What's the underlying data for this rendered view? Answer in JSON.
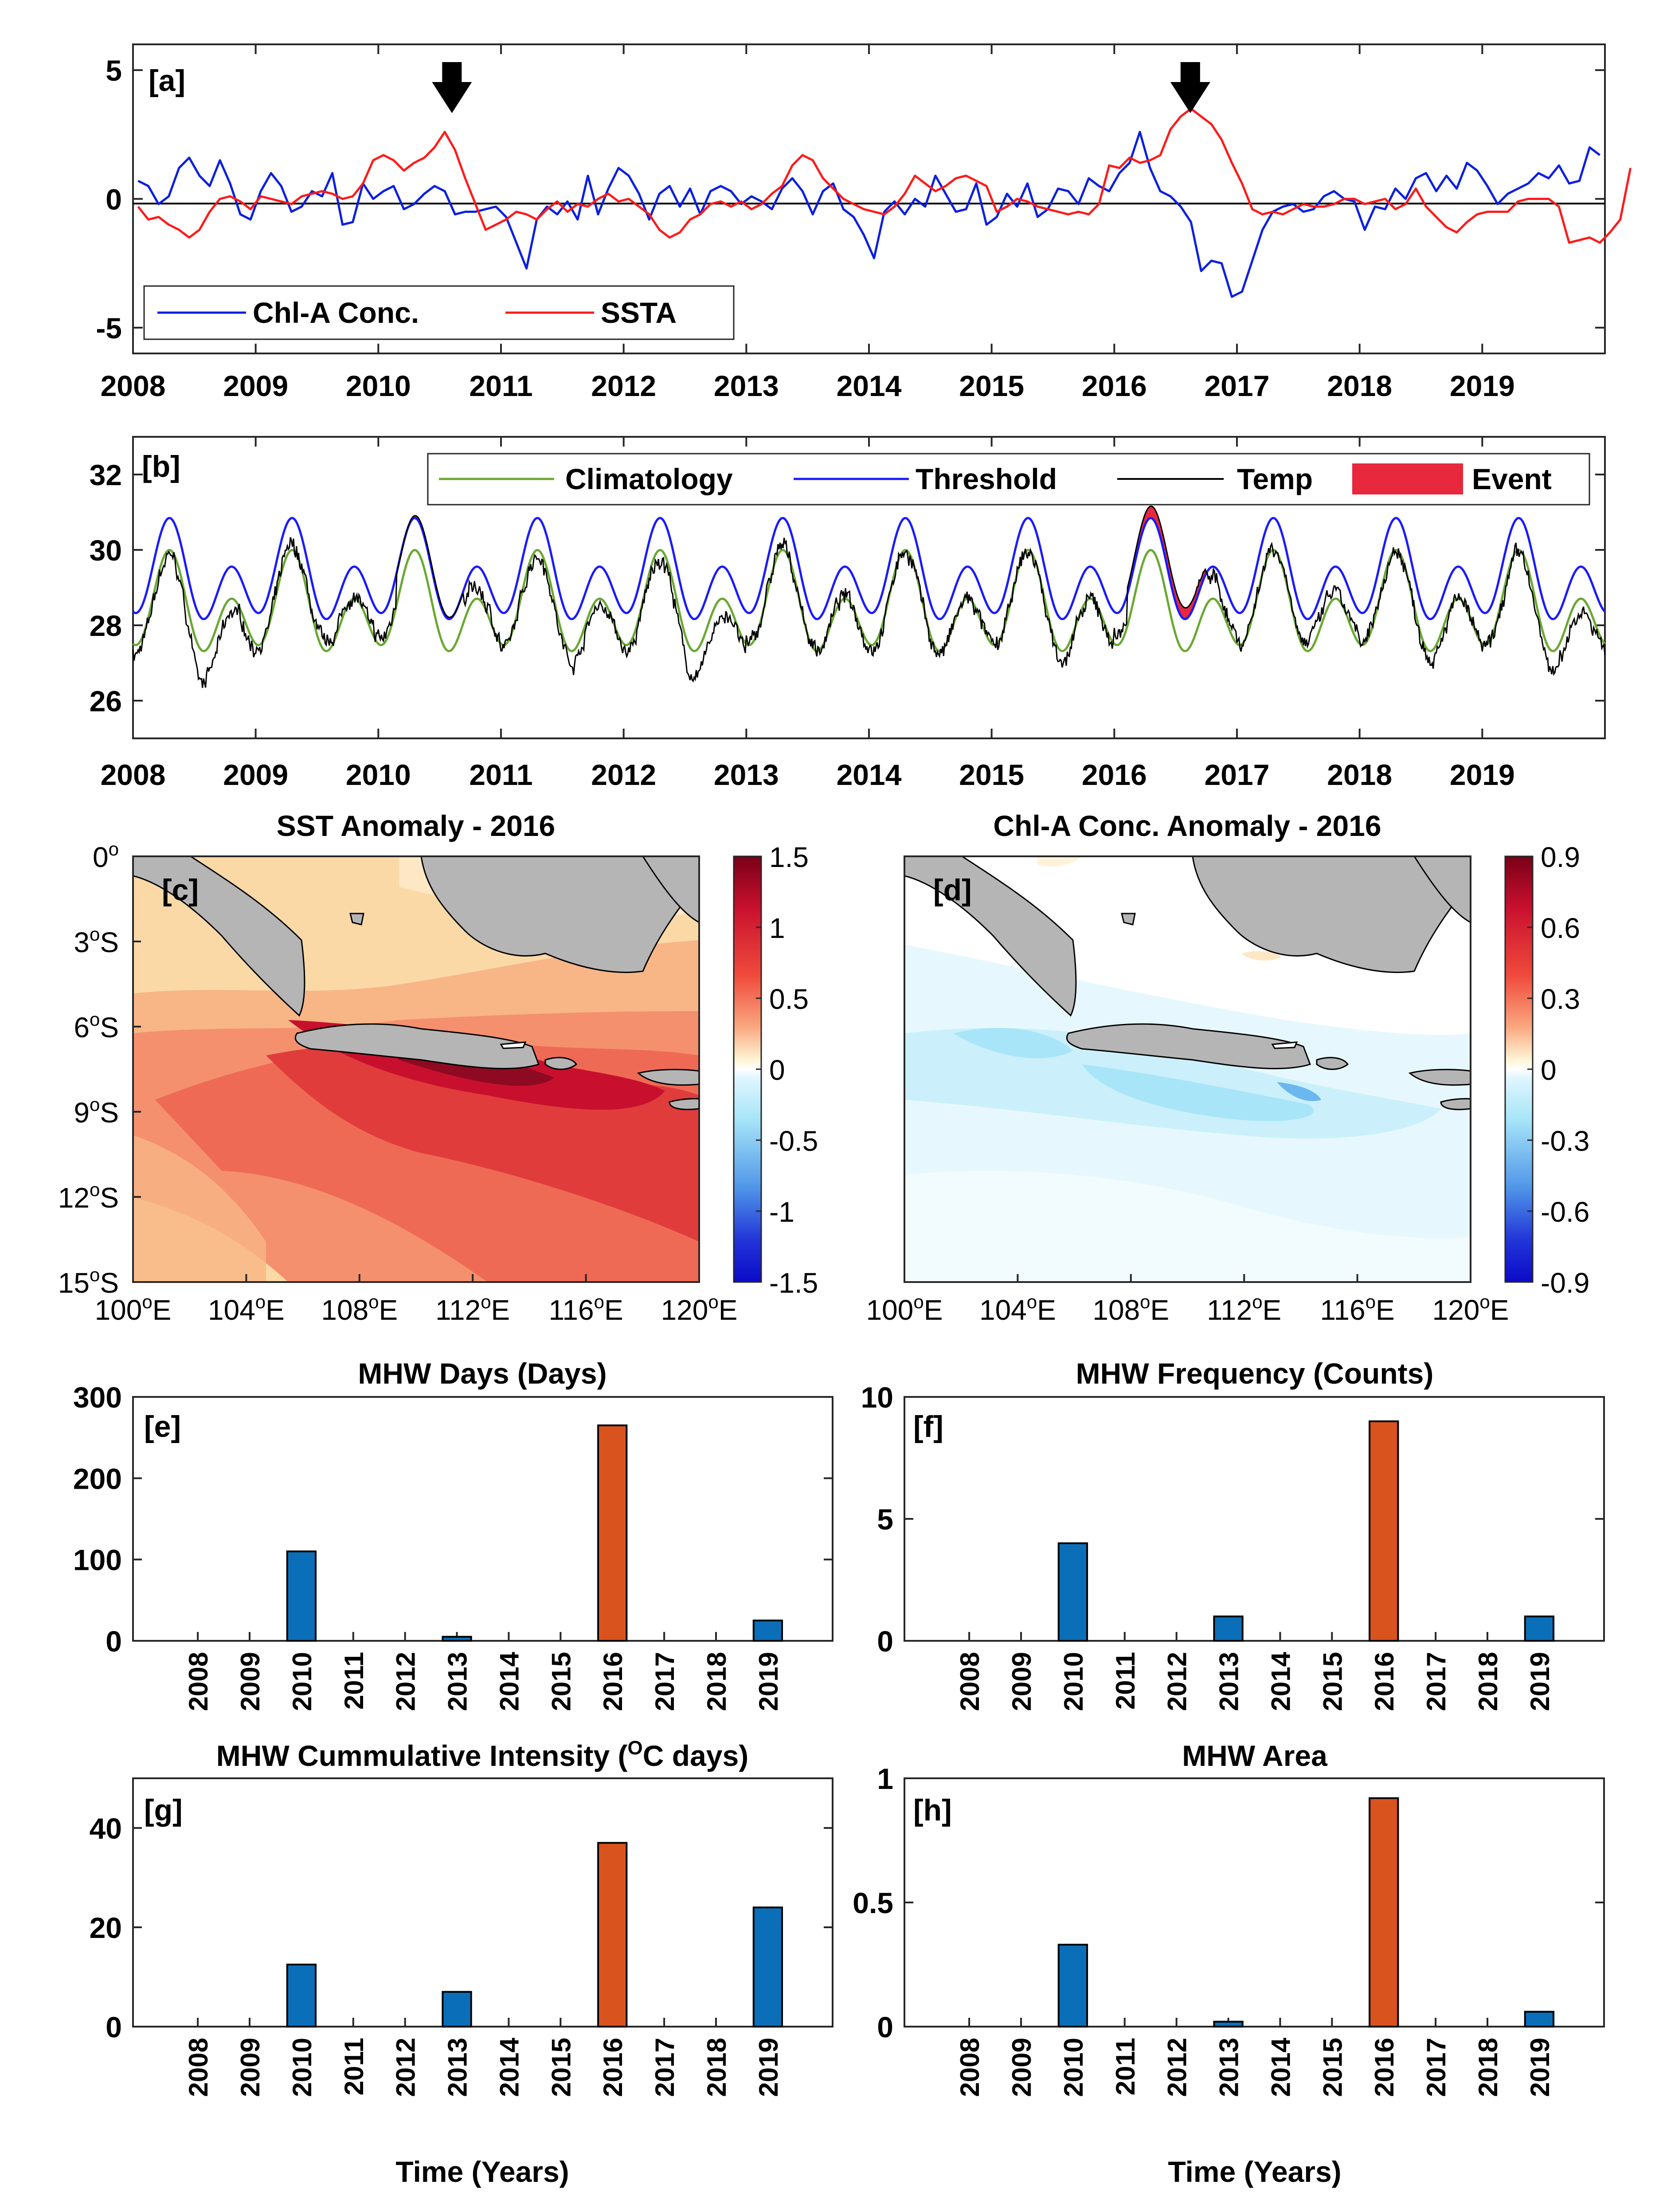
{
  "colors": {
    "chl_line": "#0b1fe0",
    "ssta_line": "#ff1a1a",
    "clim_line": "#6aa832",
    "thresh_line": "#1a1aff",
    "temp_line": "#000000",
    "event_fill": "#e8283c",
    "bar_blue": "#0a6fb8",
    "bar_orange": "#d9531e",
    "land": "#b5b5b5"
  },
  "chart_data": [
    {
      "panel_label": "[a]",
      "type": "line",
      "x_start": "2008-01",
      "x_step": "1 month",
      "ylim": [
        -6,
        6
      ],
      "yticks": [
        "5",
        "0",
        "-5"
      ],
      "xticks": [
        "2008",
        "2009",
        "2010",
        "2011",
        "2012",
        "2013",
        "2014",
        "2015",
        "2016",
        "2017",
        "2018",
        "2019"
      ],
      "annotations": [
        "arrow at 2010-08",
        "arrow at 2016-08"
      ],
      "legend_position": "bottom-left",
      "series": [
        {
          "name": "Chl-A Conc.",
          "values": [
            0.7,
            0.5,
            -0.2,
            0.1,
            1.2,
            1.6,
            0.9,
            0.5,
            1.5,
            0.6,
            -0.6,
            -0.8,
            0.3,
            1.0,
            0.5,
            -0.5,
            -0.3,
            0.3,
            0.1,
            1.0,
            -1.0,
            -0.9,
            0.6,
            0.0,
            0.3,
            0.5,
            -0.4,
            -0.2,
            0.2,
            0.5,
            0.3,
            -0.6,
            -0.5,
            -0.5,
            -0.4,
            -0.3,
            -0.7,
            -1.7,
            -2.7,
            -0.8,
            -0.3,
            -0.6,
            -0.1,
            -0.8,
            0.9,
            -0.6,
            0.4,
            1.2,
            0.9,
            0.2,
            -0.8,
            0.2,
            0.5,
            -0.3,
            0.4,
            -0.6,
            0.3,
            0.5,
            0.3,
            -0.2,
            0.1,
            -0.1,
            -0.4,
            0.4,
            0.8,
            0.3,
            -0.6,
            0.3,
            0.6,
            -0.4,
            -0.7,
            -1.4,
            -2.3,
            -0.5,
            -0.1,
            -0.6,
            0.0,
            -0.3,
            0.9,
            0.2,
            -0.5,
            -0.4,
            0.6,
            -1.0,
            -0.7,
            0.2,
            -0.3,
            0.6,
            -0.7,
            -0.4,
            0.4,
            0.3,
            -0.2,
            0.8,
            0.5,
            0.3,
            1.0,
            1.4,
            2.6,
            1.2,
            0.3,
            0.1,
            -0.3,
            -0.9,
            -2.8,
            -2.4,
            -2.5,
            -3.8,
            -3.6,
            -2.4,
            -1.2,
            -0.5,
            -0.3,
            -0.2,
            -0.5,
            -0.4,
            0.1,
            0.3,
            0.0,
            -0.1,
            -1.2,
            -0.3,
            -0.4,
            0.4,
            0.0,
            0.8,
            1.0,
            0.3,
            0.9,
            0.4,
            1.4,
            1.1,
            0.5,
            -0.2,
            0.2,
            0.4,
            0.6,
            1.0,
            0.8,
            1.3,
            0.6,
            0.7,
            2.0,
            1.7
          ]
        },
        {
          "name": "SSTA",
          "values": [
            -0.3,
            -0.8,
            -0.7,
            -1.0,
            -1.2,
            -1.5,
            -1.2,
            -0.5,
            0.0,
            0.1,
            -0.1,
            -0.4,
            0.1,
            0.0,
            -0.1,
            -0.2,
            0.1,
            0.2,
            0.3,
            0.2,
            0.0,
            0.1,
            0.6,
            1.5,
            1.7,
            1.5,
            1.1,
            1.4,
            1.6,
            2.0,
            2.6,
            1.9,
            0.8,
            -0.2,
            -1.2,
            -1.0,
            -0.8,
            -0.5,
            -0.6,
            -0.8,
            -0.4,
            -0.1,
            -0.5,
            -0.2,
            -0.3,
            0.0,
            0.2,
            -0.1,
            0.0,
            -0.3,
            -0.6,
            -1.2,
            -1.5,
            -1.3,
            -0.8,
            -0.6,
            -0.2,
            -0.1,
            -0.3,
            -0.1,
            -0.4,
            -0.2,
            0.2,
            0.5,
            1.3,
            1.7,
            1.5,
            0.8,
            0.4,
            0.0,
            -0.2,
            -0.4,
            -0.5,
            -0.6,
            -0.3,
            0.2,
            0.9,
            0.6,
            0.3,
            0.5,
            0.8,
            0.9,
            0.7,
            0.5,
            -0.5,
            -0.3,
            0.0,
            -0.1,
            -0.3,
            -0.4,
            -0.5,
            -0.6,
            -0.5,
            -0.6,
            -0.2,
            1.3,
            1.2,
            1.6,
            1.4,
            1.5,
            1.7,
            2.7,
            3.2,
            3.5,
            3.2,
            2.9,
            2.3,
            1.4,
            0.6,
            -0.4,
            -0.6,
            -0.5,
            -0.6,
            -0.4,
            -0.2,
            -0.3,
            -0.3,
            -0.2,
            0.0,
            0.0,
            -0.2,
            -0.1,
            0.0,
            -0.4,
            -0.2,
            0.4,
            -0.3,
            -0.7,
            -1.1,
            -1.3,
            -0.9,
            -0.6,
            -0.5,
            -0.5,
            -0.5,
            -0.1,
            0.0,
            0.0,
            0.0,
            -0.3,
            -1.7,
            -1.6,
            -1.5,
            -1.7,
            -1.3,
            -0.8,
            1.2
          ]
        }
      ]
    },
    {
      "panel_label": "[b]",
      "type": "line",
      "ylim": [
        25,
        33
      ],
      "yticks": [
        "26",
        "28",
        "30",
        "32"
      ],
      "xticks": [
        "2008",
        "2009",
        "2010",
        "2011",
        "2012",
        "2013",
        "2014",
        "2015",
        "2016",
        "2017",
        "2018",
        "2019"
      ],
      "legend_position": "top-right",
      "series": [
        {
          "name": "Climatology",
          "description": "annual cycle, peaks ~29.6 around Apr and Nov, minimum ~26.3 around Aug"
        },
        {
          "name": "Threshold",
          "description": "climatology + ~0.9, peaks ~30.4, minimum ~27.2"
        },
        {
          "name": "Temp",
          "description": "daily SST, 2008–2019, range ~25.2–30.9"
        },
        {
          "name": "Event",
          "description": "shaded where Temp exceeds Threshold; main event 2016, smaller in 2010"
        }
      ]
    },
    {
      "panel_label": "[c]",
      "type": "heatmap",
      "title": "SST Anomaly - 2016",
      "xticks": [
        "100°E",
        "104°E",
        "108°E",
        "112°E",
        "116°E",
        "120°E"
      ],
      "yticks": [
        "0°",
        "3°S",
        "6°S",
        "9°S",
        "12°S",
        "15°S"
      ],
      "colorbar_ticks": [
        "1.5",
        "1",
        "0.5",
        "0",
        "-0.5",
        "-1",
        "-1.5"
      ],
      "colorbar_range": [
        -1.5,
        1.5
      ]
    },
    {
      "panel_label": "[d]",
      "type": "heatmap",
      "title": "Chl-A Conc. Anomaly - 2016",
      "xticks": [
        "100°E",
        "104°E",
        "108°E",
        "112°E",
        "116°E",
        "120°E"
      ],
      "colorbar_ticks": [
        "0.9",
        "0.6",
        "0.3",
        "0",
        "-0.3",
        "-0.6",
        "-0.9"
      ],
      "colorbar_range": [
        -0.9,
        0.9
      ]
    },
    {
      "panel_label": "[e]",
      "type": "bar",
      "title": "MHW Days (Days)",
      "categories": [
        "2008",
        "2009",
        "2010",
        "2011",
        "2012",
        "2013",
        "2014",
        "2015",
        "2016",
        "2017",
        "2018",
        "2019"
      ],
      "values": [
        0,
        0,
        110,
        0,
        0,
        5,
        0,
        0,
        265,
        0,
        0,
        25
      ],
      "highlight": "2016",
      "ylim": [
        0,
        300
      ],
      "yticks": [
        "0",
        "100",
        "200",
        "300"
      ]
    },
    {
      "panel_label": "[f]",
      "type": "bar",
      "title": "MHW Frequency (Counts)",
      "categories": [
        "2008",
        "2009",
        "2010",
        "2011",
        "2012",
        "2013",
        "2014",
        "2015",
        "2016",
        "2017",
        "2018",
        "2019"
      ],
      "values": [
        0,
        0,
        4,
        0,
        0,
        1,
        0,
        0,
        9,
        0,
        0,
        1
      ],
      "highlight": "2016",
      "ylim": [
        0,
        10
      ],
      "yticks": [
        "0",
        "5",
        "10"
      ]
    },
    {
      "panel_label": "[g]",
      "type": "bar",
      "title": "MHW Cummulative Intensity (",
      "title_unit": "C days)",
      "title_sup": "O",
      "categories": [
        "2008",
        "2009",
        "2010",
        "2011",
        "2012",
        "2013",
        "2014",
        "2015",
        "2016",
        "2017",
        "2018",
        "2019"
      ],
      "values": [
        0,
        0,
        12.5,
        0,
        0,
        7,
        0,
        0,
        37,
        0,
        0,
        24
      ],
      "highlight": "2016",
      "ylim": [
        0,
        50
      ],
      "yticks": [
        "0",
        "20",
        "40"
      ],
      "xlabel": "Time (Years)"
    },
    {
      "panel_label": "[h]",
      "type": "bar",
      "title": "MHW Area",
      "categories": [
        "2008",
        "2009",
        "2010",
        "2011",
        "2012",
        "2013",
        "2014",
        "2015",
        "2016",
        "2017",
        "2018",
        "2019"
      ],
      "values": [
        0,
        0,
        0.33,
        0,
        0,
        0.02,
        0,
        0,
        0.92,
        0,
        0,
        0.06
      ],
      "highlight": "2016",
      "ylim": [
        0,
        1
      ],
      "yticks": [
        "0",
        "0.5",
        "1"
      ],
      "xlabel": "Time (Years)"
    }
  ]
}
